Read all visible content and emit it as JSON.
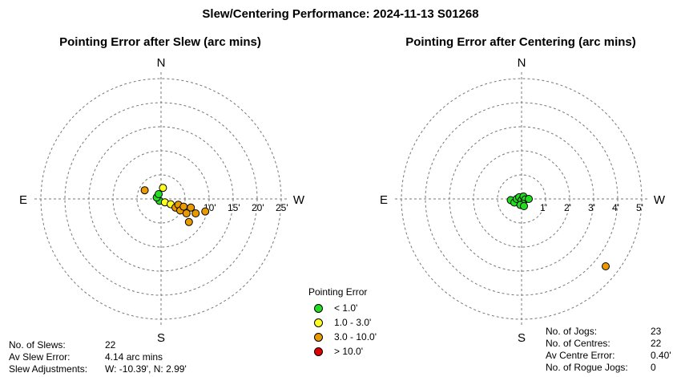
{
  "title": "Slew/Centering Performance: 2024-11-13 S01268",
  "colors": {
    "green": "#22dd22",
    "yellow": "#ffff22",
    "orange": "#e89a00",
    "red": "#e00000",
    "grid": "#777777"
  },
  "legend": {
    "title": "Pointing Error",
    "items": [
      {
        "label": "< 1.0'",
        "color": "#22dd22"
      },
      {
        "label": "1.0 - 3.0'",
        "color": "#ffff22"
      },
      {
        "label": "3.0 - 10.0'",
        "color": "#e89a00"
      },
      {
        "label": "> 10.0'",
        "color": "#e00000"
      }
    ]
  },
  "chart_data": [
    {
      "type": "scatter",
      "coordinates": "polar",
      "title": "Pointing Error after Slew (arc mins)",
      "cardinals": {
        "n": "N",
        "s": "S",
        "e": "E",
        "w": "W"
      },
      "rings": [
        5,
        10,
        15,
        20,
        25
      ],
      "ring_labels": [
        "5",
        "10'",
        "15'",
        "20'",
        "25'"
      ],
      "unit": "arc mins",
      "points": [
        {
          "x": -0.3,
          "y": -0.4,
          "color": "#22dd22"
        },
        {
          "x": -0.9,
          "y": 0.3,
          "color": "#22dd22"
        },
        {
          "x": -0.5,
          "y": 1.0,
          "color": "#22dd22"
        },
        {
          "x": 0.4,
          "y": 2.3,
          "color": "#ffff22"
        },
        {
          "x": 0.8,
          "y": -0.7,
          "color": "#ffff22"
        },
        {
          "x": 2.0,
          "y": -1.1,
          "color": "#ffff22"
        },
        {
          "x": -3.4,
          "y": 1.8,
          "color": "#e89a00"
        },
        {
          "x": 3.0,
          "y": -1.8,
          "color": "#e89a00"
        },
        {
          "x": 3.6,
          "y": -1.2,
          "color": "#e89a00"
        },
        {
          "x": 4.0,
          "y": -2.4,
          "color": "#e89a00"
        },
        {
          "x": 4.7,
          "y": -1.6,
          "color": "#e89a00"
        },
        {
          "x": 5.3,
          "y": -3.0,
          "color": "#e89a00"
        },
        {
          "x": 6.2,
          "y": -1.8,
          "color": "#e89a00"
        },
        {
          "x": 7.2,
          "y": -3.0,
          "color": "#e89a00"
        },
        {
          "x": 5.8,
          "y": -4.8,
          "color": "#e89a00"
        },
        {
          "x": 9.2,
          "y": -2.6,
          "color": "#e89a00"
        }
      ]
    },
    {
      "type": "scatter",
      "coordinates": "polar",
      "title": "Pointing Error after Centering (arc mins)",
      "cardinals": {
        "n": "N",
        "s": "S",
        "e": "E",
        "w": "W"
      },
      "rings": [
        1,
        2,
        3,
        4,
        5
      ],
      "ring_labels": [
        "1'",
        "2'",
        "3'",
        "4'",
        "5'"
      ],
      "unit": "arc mins",
      "points": [
        {
          "x": -0.45,
          "y": -0.05,
          "color": "#22dd22"
        },
        {
          "x": -0.3,
          "y": -0.15,
          "color": "#22dd22"
        },
        {
          "x": -0.2,
          "y": 0.0,
          "color": "#22dd22"
        },
        {
          "x": -0.1,
          "y": 0.07,
          "color": "#22dd22"
        },
        {
          "x": 0.0,
          "y": -0.05,
          "color": "#22dd22"
        },
        {
          "x": 0.08,
          "y": 0.1,
          "color": "#22dd22"
        },
        {
          "x": 0.15,
          "y": -0.02,
          "color": "#22dd22"
        },
        {
          "x": 0.05,
          "y": -0.2,
          "color": "#22dd22"
        },
        {
          "x": -0.05,
          "y": -0.25,
          "color": "#22dd22"
        },
        {
          "x": 0.1,
          "y": -0.3,
          "color": "#22dd22"
        },
        {
          "x": 0.3,
          "y": 0.0,
          "color": "#22dd22"
        },
        {
          "x": 3.5,
          "y": -2.8,
          "color": "#e89a00"
        }
      ]
    }
  ],
  "slew_stats": [
    {
      "label": "No. of Slews:",
      "value": "22"
    },
    {
      "label": "Av Slew Error:",
      "value": "4.14 arc mins"
    },
    {
      "label": "Slew Adjustments:",
      "value": "W: -10.39', N: 2.99'"
    }
  ],
  "centering_stats": [
    {
      "label": "No. of Jogs:",
      "value": "23"
    },
    {
      "label": "No. of Centres:",
      "value": "22"
    },
    {
      "label": "Av Centre Error:",
      "value": "0.40'"
    },
    {
      "label": "No. of Rogue Jogs:",
      "value": "0"
    }
  ]
}
